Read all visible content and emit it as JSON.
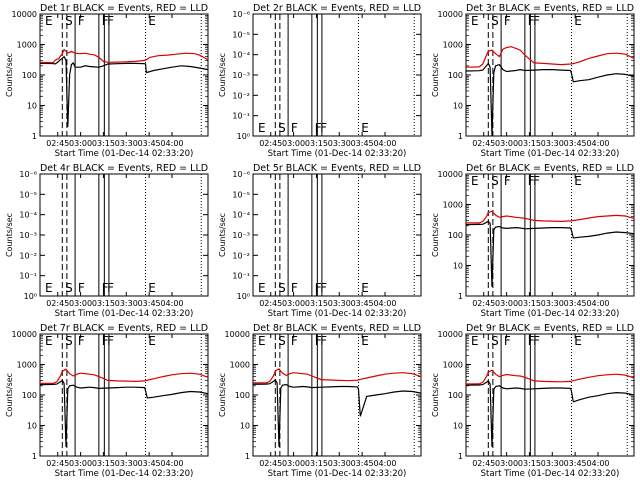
{
  "chart_data": {
    "type": "line",
    "x_tick_labels": [
      "02:45",
      "03:00",
      "03:15",
      "03:30",
      "03:45",
      "04:00"
    ],
    "x_tick_labels_time_hours": [
      2.75,
      3.0,
      3.25,
      3.5,
      3.75,
      4.0
    ],
    "xlim_time_hours": [
      2.556,
      4.394
    ],
    "x_axis_label": "Start Time (01-Dec-14 02:33:20)",
    "y_axis_label": "Counts/sec",
    "y_scale": "log",
    "ylim": [
      1,
      10000
    ],
    "y_tick_labels": [
      "1",
      "10",
      "100",
      "1000",
      "10000"
    ],
    "empty_ylim": [
      1,
      1e-06
    ],
    "empty_y_tick_labels": [
      "10⁰",
      "10⁻¹",
      "10⁻²",
      "10⁻³",
      "10⁻⁴",
      "10⁻⁵",
      "10⁻⁶"
    ],
    "series_colors": {
      "events": "#000000",
      "lld": "#dd0000"
    },
    "vlines": [
      {
        "time_hours": 2.8,
        "style": "dashed"
      },
      {
        "time_hours": 2.85,
        "style": "dashed"
      },
      {
        "time_hours": 2.94,
        "style": "solid"
      },
      {
        "time_hours": 3.2,
        "style": "solid"
      },
      {
        "time_hours": 3.26,
        "style": "solid"
      },
      {
        "time_hours": 3.31,
        "style": "solid"
      },
      {
        "time_hours": 3.71,
        "style": "dotted"
      },
      {
        "time_hours": 4.32,
        "style": "dotted"
      }
    ],
    "markers": [
      {
        "label": "E",
        "time_hours": 2.6
      },
      {
        "label": "S",
        "time_hours": 2.82
      },
      {
        "label": "F",
        "time_hours": 2.96
      },
      {
        "label": "F",
        "time_hours": 3.22
      },
      {
        "label": "F",
        "time_hours": 3.28
      },
      {
        "label": "E",
        "time_hours": 3.73
      }
    ],
    "panels": [
      {
        "title": "Det 1r BLACK = Events, RED = LLD",
        "empty": false,
        "lld": {
          "t": [
            2.556,
            2.7,
            2.72,
            2.74,
            2.76,
            2.78,
            2.8,
            2.82,
            2.86,
            2.9,
            2.94,
            3.0,
            3.05,
            3.1,
            3.15,
            3.2,
            3.25,
            3.3,
            3.4,
            3.5,
            3.6,
            3.7,
            3.72,
            3.76,
            3.85,
            3.95,
            4.05,
            4.15,
            4.25,
            4.3,
            4.394
          ],
          "v": [
            260,
            255,
            300,
            330,
            340,
            420,
            500,
            680,
            520,
            600,
            520,
            500,
            520,
            480,
            460,
            380,
            280,
            260,
            265,
            270,
            280,
            300,
            320,
            380,
            430,
            450,
            480,
            520,
            500,
            450,
            320
          ]
        },
        "events": {
          "t": [
            2.556,
            2.7,
            2.72,
            2.74,
            2.76,
            2.78,
            2.8,
            2.82,
            2.84,
            2.86,
            2.88,
            2.9,
            2.92,
            2.94,
            3.0,
            3.05,
            3.1,
            3.15,
            3.2,
            3.25,
            3.3,
            3.4,
            3.5,
            3.6,
            3.7,
            3.71,
            3.72,
            3.8,
            3.9,
            4.0,
            4.1,
            4.2,
            4.3,
            4.394
          ],
          "v": [
            240,
            238,
            230,
            250,
            280,
            320,
            350,
            400,
            300,
            2,
            100,
            220,
            250,
            180,
            180,
            200,
            190,
            185,
            180,
            200,
            230,
            235,
            240,
            240,
            235,
            230,
            120,
            140,
            160,
            180,
            200,
            190,
            170,
            150
          ]
        }
      },
      {
        "title": "Det 2r BLACK = Events, RED = LLD",
        "empty": true
      },
      {
        "title": "Det 3r BLACK = Events, RED = LLD",
        "empty": false,
        "lld": {
          "t": [
            2.556,
            2.7,
            2.74,
            2.78,
            2.8,
            2.84,
            2.88,
            2.92,
            2.96,
            3.0,
            3.05,
            3.1,
            3.15,
            3.2,
            3.3,
            3.4,
            3.5,
            3.6,
            3.7,
            3.74,
            3.8,
            3.9,
            4.0,
            4.1,
            4.2,
            4.3,
            4.394
          ],
          "v": [
            180,
            185,
            230,
            450,
            600,
            650,
            500,
            400,
            700,
            800,
            850,
            750,
            650,
            450,
            250,
            240,
            230,
            220,
            230,
            240,
            270,
            350,
            420,
            500,
            520,
            480,
            350
          ]
        },
        "events": {
          "t": [
            2.556,
            2.7,
            2.74,
            2.78,
            2.8,
            2.82,
            2.84,
            2.86,
            2.88,
            2.92,
            2.96,
            3.0,
            3.05,
            3.1,
            3.15,
            3.2,
            3.3,
            3.4,
            3.5,
            3.6,
            3.7,
            3.71,
            3.73,
            3.8,
            3.9,
            4.0,
            4.1,
            4.2,
            4.3,
            4.394
          ],
          "v": [
            135,
            138,
            145,
            200,
            240,
            180,
            1,
            120,
            200,
            220,
            150,
            130,
            135,
            140,
            150,
            140,
            145,
            150,
            150,
            145,
            140,
            110,
            60,
            65,
            70,
            85,
            100,
            110,
            105,
            90
          ]
        }
      },
      {
        "title": "Det 4r BLACK = Events, RED = LLD",
        "empty": true
      },
      {
        "title": "Det 5r BLACK = Events, RED = LLD",
        "empty": true
      },
      {
        "title": "Det 6r BLACK = Events, RED = LLD",
        "empty": false,
        "lld": {
          "t": [
            2.556,
            2.7,
            2.74,
            2.78,
            2.8,
            2.84,
            2.88,
            2.92,
            2.96,
            3.0,
            3.05,
            3.1,
            3.15,
            3.2,
            3.3,
            3.4,
            3.5,
            3.6,
            3.7,
            3.74,
            3.8,
            3.9,
            4.0,
            4.1,
            4.2,
            4.3,
            4.394
          ],
          "v": [
            250,
            250,
            280,
            400,
            550,
            600,
            450,
            380,
            400,
            420,
            400,
            380,
            370,
            350,
            300,
            290,
            285,
            280,
            290,
            300,
            320,
            360,
            400,
            420,
            440,
            420,
            350
          ]
        },
        "events": {
          "t": [
            2.556,
            2.7,
            2.74,
            2.78,
            2.8,
            2.82,
            2.84,
            2.86,
            2.88,
            2.92,
            2.96,
            3.0,
            3.05,
            3.1,
            3.15,
            3.2,
            3.3,
            3.4,
            3.5,
            3.6,
            3.7,
            3.71,
            3.73,
            3.8,
            3.9,
            4.0,
            4.1,
            4.2,
            4.3,
            4.394
          ],
          "v": [
            220,
            222,
            225,
            260,
            280,
            240,
            2,
            150,
            180,
            190,
            170,
            165,
            170,
            175,
            170,
            160,
            165,
            170,
            175,
            175,
            170,
            140,
            80,
            85,
            90,
            100,
            115,
            125,
            120,
            110
          ]
        }
      },
      {
        "title": "Det 7r BLACK = Events, RED = LLD",
        "empty": false,
        "lld": {
          "t": [
            2.556,
            2.7,
            2.74,
            2.78,
            2.8,
            2.84,
            2.88,
            2.92,
            2.96,
            3.0,
            3.05,
            3.1,
            3.15,
            3.2,
            3.3,
            3.4,
            3.5,
            3.6,
            3.7,
            3.74,
            3.8,
            3.9,
            4.0,
            4.1,
            4.2,
            4.3,
            4.394
          ],
          "v": [
            240,
            240,
            270,
            420,
            600,
            700,
            500,
            420,
            480,
            520,
            500,
            480,
            460,
            400,
            300,
            290,
            285,
            280,
            290,
            310,
            340,
            400,
            460,
            500,
            520,
            480,
            380
          ]
        },
        "events": {
          "t": [
            2.556,
            2.7,
            2.74,
            2.78,
            2.8,
            2.82,
            2.84,
            2.86,
            2.88,
            2.92,
            2.96,
            3.0,
            3.05,
            3.1,
            3.15,
            3.2,
            3.3,
            3.4,
            3.5,
            3.6,
            3.7,
            3.71,
            3.73,
            3.8,
            3.9,
            4.0,
            4.1,
            4.2,
            4.3,
            4.394
          ],
          "v": [
            220,
            222,
            228,
            270,
            300,
            240,
            2,
            160,
            200,
            210,
            180,
            170,
            175,
            180,
            175,
            165,
            170,
            175,
            180,
            180,
            175,
            140,
            80,
            85,
            95,
            105,
            120,
            130,
            125,
            110
          ]
        }
      },
      {
        "title": "Det 8r BLACK = Events, RED = LLD",
        "empty": false,
        "lld": {
          "t": [
            2.556,
            2.7,
            2.74,
            2.78,
            2.8,
            2.84,
            2.88,
            2.92,
            2.96,
            3.0,
            3.05,
            3.1,
            3.15,
            3.2,
            3.3,
            3.4,
            3.5,
            3.6,
            3.7,
            3.74,
            3.8,
            3.9,
            4.0,
            4.1,
            4.2,
            4.3,
            4.394
          ],
          "v": [
            250,
            250,
            280,
            430,
            620,
            720,
            520,
            440,
            500,
            540,
            520,
            500,
            480,
            420,
            320,
            310,
            300,
            295,
            305,
            330,
            360,
            420,
            480,
            520,
            540,
            500,
            400
          ]
        },
        "events": {
          "t": [
            2.556,
            2.7,
            2.74,
            2.78,
            2.8,
            2.82,
            2.84,
            2.86,
            2.88,
            2.92,
            2.96,
            3.0,
            3.05,
            3.1,
            3.15,
            3.2,
            3.3,
            3.4,
            3.5,
            3.6,
            3.7,
            3.71,
            3.73,
            3.8,
            3.9,
            4.0,
            4.1,
            4.2,
            4.3,
            4.394
          ],
          "v": [
            225,
            228,
            235,
            280,
            310,
            250,
            2,
            170,
            210,
            220,
            190,
            180,
            185,
            190,
            185,
            175,
            180,
            185,
            190,
            190,
            185,
            150,
            20,
            90,
            100,
            110,
            125,
            135,
            130,
            115
          ]
        }
      },
      {
        "title": "Det 9r BLACK = Events, RED = LLD",
        "empty": false,
        "lld": {
          "t": [
            2.556,
            2.7,
            2.74,
            2.78,
            2.8,
            2.84,
            2.88,
            2.92,
            2.96,
            3.0,
            3.05,
            3.1,
            3.15,
            3.2,
            3.3,
            3.4,
            3.5,
            3.6,
            3.7,
            3.74,
            3.8,
            3.9,
            4.0,
            4.1,
            4.2,
            4.3,
            4.394
          ],
          "v": [
            230,
            232,
            260,
            400,
            560,
            650,
            480,
            400,
            440,
            470,
            450,
            430,
            420,
            380,
            290,
            280,
            275,
            270,
            280,
            300,
            330,
            380,
            430,
            460,
            480,
            450,
            360
          ]
        },
        "events": {
          "t": [
            2.556,
            2.7,
            2.74,
            2.78,
            2.8,
            2.82,
            2.84,
            2.86,
            2.88,
            2.92,
            2.96,
            3.0,
            3.05,
            3.1,
            3.15,
            3.2,
            3.3,
            3.4,
            3.5,
            3.6,
            3.7,
            3.71,
            3.73,
            3.8,
            3.9,
            4.0,
            4.1,
            4.2,
            4.3,
            4.394
          ],
          "v": [
            210,
            212,
            220,
            260,
            290,
            230,
            2,
            150,
            190,
            200,
            170,
            160,
            165,
            170,
            165,
            155,
            160,
            165,
            170,
            170,
            165,
            130,
            60,
            70,
            85,
            95,
            110,
            120,
            115,
            100
          ]
        }
      }
    ]
  }
}
